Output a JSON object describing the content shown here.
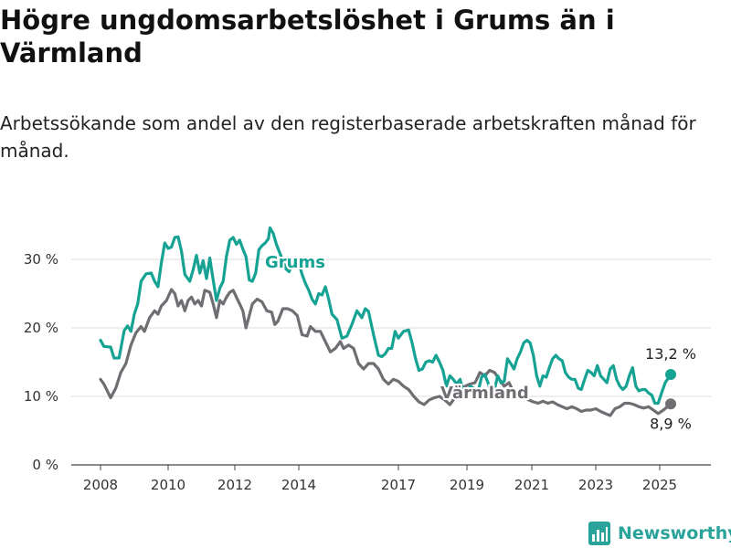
{
  "title": "Högre ungdomsarbetslöshet i Grums än i Värmland",
  "subtitle": "Arbetssökande som andel av den registerbaserade arbetskraften månad för månad.",
  "brand": {
    "name": "Newsworthy",
    "icon": "bar-chart-logo-icon",
    "color": "#2aa39a"
  },
  "chart_data": {
    "type": "line",
    "title": "Högre ungdomsarbetslöshet i Grums än i Värmland",
    "subtitle": "Arbetssökande som andel av den registerbaserade arbetskraften månad för månad.",
    "xlabel": "",
    "ylabel": "",
    "x_ticks": [
      "2008",
      "2010",
      "2012",
      "2014",
      "2017",
      "2019",
      "2021",
      "2023",
      "2025"
    ],
    "y_ticks": [
      0,
      10,
      20,
      30
    ],
    "y_tick_labels": [
      "0 %",
      "10 %",
      "20 %",
      "30 %"
    ],
    "ylim": [
      0,
      36
    ],
    "xlim": [
      2007.6,
      2026.4
    ],
    "grid": true,
    "legend": "inline labels",
    "series": [
      {
        "name": "Grums",
        "color": "#16a394",
        "end_label": "13,2 %",
        "points": [
          [
            2008.0,
            18.2
          ],
          [
            2008.1,
            17.3
          ],
          [
            2008.3,
            17.2
          ],
          [
            2008.4,
            15.6
          ],
          [
            2008.55,
            15.6
          ],
          [
            2008.7,
            19.6
          ],
          [
            2008.8,
            20.3
          ],
          [
            2008.9,
            19.5
          ],
          [
            2009.0,
            22.0
          ],
          [
            2009.1,
            23.5
          ],
          [
            2009.2,
            26.8
          ],
          [
            2009.35,
            27.9
          ],
          [
            2009.5,
            28.0
          ],
          [
            2009.6,
            26.8
          ],
          [
            2009.7,
            26.0
          ],
          [
            2009.8,
            29.5
          ],
          [
            2009.9,
            32.4
          ],
          [
            2010.0,
            31.6
          ],
          [
            2010.1,
            31.8
          ],
          [
            2010.2,
            33.2
          ],
          [
            2010.3,
            33.3
          ],
          [
            2010.4,
            31.2
          ],
          [
            2010.5,
            27.8
          ],
          [
            2010.65,
            26.8
          ],
          [
            2010.75,
            28.5
          ],
          [
            2010.85,
            30.6
          ],
          [
            2010.95,
            28.0
          ],
          [
            2011.05,
            29.8
          ],
          [
            2011.15,
            27.2
          ],
          [
            2011.25,
            30.2
          ],
          [
            2011.35,
            27.0
          ],
          [
            2011.45,
            24.0
          ],
          [
            2011.55,
            25.8
          ],
          [
            2011.65,
            26.8
          ],
          [
            2011.75,
            30.5
          ],
          [
            2011.85,
            32.8
          ],
          [
            2011.95,
            33.2
          ],
          [
            2012.05,
            32.2
          ],
          [
            2012.15,
            32.8
          ],
          [
            2012.25,
            31.5
          ],
          [
            2012.35,
            30.4
          ],
          [
            2012.45,
            27.0
          ],
          [
            2012.55,
            26.8
          ],
          [
            2012.65,
            28.0
          ],
          [
            2012.75,
            31.4
          ],
          [
            2012.85,
            32.0
          ],
          [
            2012.95,
            32.4
          ],
          [
            2013.05,
            33.0
          ],
          [
            2013.1,
            34.6
          ],
          [
            2013.2,
            33.8
          ],
          [
            2013.3,
            32.2
          ],
          [
            2013.4,
            31.0
          ],
          [
            2013.5,
            29.8
          ],
          [
            2013.6,
            28.6
          ],
          [
            2013.7,
            28.2
          ],
          [
            2013.8,
            29.8
          ],
          [
            2013.9,
            30.2
          ],
          [
            2014.0,
            29.5
          ],
          [
            2014.1,
            27.8
          ],
          [
            2014.2,
            26.5
          ],
          [
            2014.3,
            25.5
          ],
          [
            2014.4,
            24.2
          ],
          [
            2014.5,
            23.5
          ],
          [
            2014.6,
            25.0
          ],
          [
            2014.7,
            24.8
          ],
          [
            2014.8,
            26.0
          ],
          [
            2014.9,
            24.2
          ],
          [
            2015.0,
            22.0
          ],
          [
            2015.15,
            21.2
          ],
          [
            2015.3,
            18.5
          ],
          [
            2015.45,
            18.8
          ],
          [
            2015.6,
            20.5
          ],
          [
            2015.75,
            22.5
          ],
          [
            2015.9,
            21.5
          ],
          [
            2016.0,
            22.8
          ],
          [
            2016.1,
            22.4
          ],
          [
            2016.25,
            19.0
          ],
          [
            2016.4,
            16.0
          ],
          [
            2016.5,
            15.8
          ],
          [
            2016.6,
            16.2
          ],
          [
            2016.7,
            17.0
          ],
          [
            2016.8,
            17.0
          ],
          [
            2016.9,
            19.5
          ],
          [
            2017.0,
            18.5
          ],
          [
            2017.15,
            19.5
          ],
          [
            2017.3,
            19.7
          ],
          [
            2017.4,
            17.8
          ],
          [
            2017.5,
            15.5
          ],
          [
            2017.6,
            13.8
          ],
          [
            2017.7,
            14.0
          ],
          [
            2017.8,
            15.0
          ],
          [
            2017.9,
            15.2
          ],
          [
            2018.0,
            15.0
          ],
          [
            2018.1,
            16.0
          ],
          [
            2018.2,
            15.0
          ],
          [
            2018.3,
            13.8
          ],
          [
            2018.4,
            11.5
          ],
          [
            2018.5,
            13.0
          ],
          [
            2018.6,
            12.5
          ],
          [
            2018.7,
            11.8
          ],
          [
            2018.8,
            12.5
          ],
          [
            2018.9,
            10.5
          ],
          [
            2019.0,
            10.0
          ],
          [
            2019.1,
            11.5
          ],
          [
            2019.2,
            11.2
          ],
          [
            2019.3,
            9.8
          ],
          [
            2019.45,
            12.8
          ],
          [
            2019.55,
            13.2
          ],
          [
            2019.65,
            12.0
          ],
          [
            2019.75,
            10.5
          ],
          [
            2019.85,
            11.0
          ],
          [
            2019.95,
            13.0
          ],
          [
            2020.05,
            12.0
          ],
          [
            2020.15,
            12.2
          ],
          [
            2020.25,
            15.5
          ],
          [
            2020.35,
            14.8
          ],
          [
            2020.45,
            14.0
          ],
          [
            2020.55,
            15.5
          ],
          [
            2020.65,
            16.5
          ],
          [
            2020.75,
            17.8
          ],
          [
            2020.85,
            18.2
          ],
          [
            2020.95,
            17.8
          ],
          [
            2021.05,
            16.0
          ],
          [
            2021.15,
            13.0
          ],
          [
            2021.25,
            11.5
          ],
          [
            2021.35,
            13.0
          ],
          [
            2021.45,
            12.8
          ],
          [
            2021.55,
            14.2
          ],
          [
            2021.65,
            15.5
          ],
          [
            2021.75,
            16.0
          ],
          [
            2021.85,
            15.5
          ],
          [
            2021.95,
            15.2
          ],
          [
            2022.05,
            13.5
          ],
          [
            2022.15,
            12.8
          ],
          [
            2022.25,
            12.5
          ],
          [
            2022.35,
            12.5
          ],
          [
            2022.45,
            11.2
          ],
          [
            2022.55,
            11.0
          ],
          [
            2022.65,
            12.5
          ],
          [
            2022.75,
            13.8
          ],
          [
            2022.85,
            13.5
          ],
          [
            2022.95,
            13.0
          ],
          [
            2023.05,
            14.5
          ],
          [
            2023.15,
            13.0
          ],
          [
            2023.25,
            12.5
          ],
          [
            2023.35,
            12.0
          ],
          [
            2023.45,
            14.0
          ],
          [
            2023.55,
            14.5
          ],
          [
            2023.65,
            12.5
          ],
          [
            2023.75,
            11.5
          ],
          [
            2023.85,
            11.0
          ],
          [
            2023.95,
            11.5
          ],
          [
            2024.05,
            13.0
          ],
          [
            2024.15,
            14.2
          ],
          [
            2024.25,
            11.5
          ],
          [
            2024.35,
            10.8
          ],
          [
            2024.45,
            11.0
          ],
          [
            2024.55,
            11.0
          ],
          [
            2024.65,
            10.5
          ],
          [
            2024.75,
            10.2
          ],
          [
            2024.85,
            9.0
          ],
          [
            2024.95,
            9.0
          ],
          [
            2025.05,
            10.5
          ],
          [
            2025.15,
            12.0
          ],
          [
            2025.3,
            13.2
          ]
        ]
      },
      {
        "name": "Värmland",
        "color": "#6e6e73",
        "end_label": "8,9 %",
        "points": [
          [
            2008.0,
            12.5
          ],
          [
            2008.1,
            11.8
          ],
          [
            2008.2,
            10.8
          ],
          [
            2008.3,
            9.8
          ],
          [
            2008.45,
            11.2
          ],
          [
            2008.6,
            13.5
          ],
          [
            2008.75,
            14.8
          ],
          [
            2008.9,
            17.5
          ],
          [
            2009.05,
            19.3
          ],
          [
            2009.2,
            20.2
          ],
          [
            2009.3,
            19.5
          ],
          [
            2009.45,
            21.5
          ],
          [
            2009.6,
            22.5
          ],
          [
            2009.7,
            22.0
          ],
          [
            2009.8,
            23.2
          ],
          [
            2009.95,
            24.0
          ],
          [
            2010.1,
            25.6
          ],
          [
            2010.2,
            25.0
          ],
          [
            2010.3,
            23.2
          ],
          [
            2010.4,
            24.0
          ],
          [
            2010.5,
            22.5
          ],
          [
            2010.6,
            24.0
          ],
          [
            2010.7,
            24.5
          ],
          [
            2010.8,
            23.5
          ],
          [
            2010.9,
            24.0
          ],
          [
            2011.0,
            23.2
          ],
          [
            2011.1,
            25.5
          ],
          [
            2011.25,
            25.2
          ],
          [
            2011.35,
            23.5
          ],
          [
            2011.45,
            21.5
          ],
          [
            2011.55,
            24.0
          ],
          [
            2011.65,
            23.5
          ],
          [
            2011.75,
            24.5
          ],
          [
            2011.85,
            25.2
          ],
          [
            2011.95,
            25.5
          ],
          [
            2012.05,
            24.5
          ],
          [
            2012.15,
            23.5
          ],
          [
            2012.25,
            22.5
          ],
          [
            2012.35,
            20.0
          ],
          [
            2012.45,
            21.8
          ],
          [
            2012.55,
            23.5
          ],
          [
            2012.7,
            24.2
          ],
          [
            2012.85,
            23.8
          ],
          [
            2013.0,
            22.5
          ],
          [
            2013.15,
            22.3
          ],
          [
            2013.25,
            20.5
          ],
          [
            2013.35,
            21.0
          ],
          [
            2013.5,
            22.8
          ],
          [
            2013.65,
            22.8
          ],
          [
            2013.8,
            22.5
          ],
          [
            2013.95,
            21.8
          ],
          [
            2014.1,
            19.0
          ],
          [
            2014.25,
            18.8
          ],
          [
            2014.35,
            20.2
          ],
          [
            2014.5,
            19.5
          ],
          [
            2014.65,
            19.5
          ],
          [
            2014.8,
            18.0
          ],
          [
            2014.95,
            16.5
          ],
          [
            2015.1,
            17.0
          ],
          [
            2015.25,
            18.0
          ],
          [
            2015.35,
            17.0
          ],
          [
            2015.5,
            17.5
          ],
          [
            2015.65,
            17.0
          ],
          [
            2015.8,
            14.8
          ],
          [
            2015.95,
            14.0
          ],
          [
            2016.1,
            14.8
          ],
          [
            2016.25,
            14.8
          ],
          [
            2016.4,
            14.0
          ],
          [
            2016.55,
            12.5
          ],
          [
            2016.7,
            11.8
          ],
          [
            2016.85,
            12.5
          ],
          [
            2017.0,
            12.2
          ],
          [
            2017.15,
            11.5
          ],
          [
            2017.3,
            11.0
          ],
          [
            2017.45,
            10.0
          ],
          [
            2017.6,
            9.2
          ],
          [
            2017.75,
            8.8
          ],
          [
            2017.9,
            9.5
          ],
          [
            2018.05,
            9.8
          ],
          [
            2018.2,
            10.0
          ],
          [
            2018.35,
            9.5
          ],
          [
            2018.5,
            8.8
          ],
          [
            2018.65,
            9.8
          ],
          [
            2018.8,
            11.0
          ],
          [
            2018.95,
            11.5
          ],
          [
            2019.1,
            11.8
          ],
          [
            2019.25,
            12.0
          ],
          [
            2019.4,
            13.5
          ],
          [
            2019.55,
            13.0
          ],
          [
            2019.7,
            13.8
          ],
          [
            2019.85,
            13.5
          ],
          [
            2020.0,
            12.5
          ],
          [
            2020.15,
            11.5
          ],
          [
            2020.3,
            12.0
          ],
          [
            2020.45,
            10.5
          ],
          [
            2020.6,
            10.5
          ],
          [
            2020.75,
            10.0
          ],
          [
            2020.9,
            9.5
          ],
          [
            2021.05,
            9.2
          ],
          [
            2021.2,
            9.0
          ],
          [
            2021.35,
            9.3
          ],
          [
            2021.5,
            9.0
          ],
          [
            2021.65,
            9.2
          ],
          [
            2021.8,
            8.8
          ],
          [
            2021.95,
            8.5
          ],
          [
            2022.1,
            8.2
          ],
          [
            2022.25,
            8.5
          ],
          [
            2022.4,
            8.2
          ],
          [
            2022.55,
            7.8
          ],
          [
            2022.7,
            8.0
          ],
          [
            2022.85,
            8.0
          ],
          [
            2023.0,
            8.2
          ],
          [
            2023.15,
            7.8
          ],
          [
            2023.3,
            7.5
          ],
          [
            2023.45,
            7.2
          ],
          [
            2023.6,
            8.2
          ],
          [
            2023.75,
            8.5
          ],
          [
            2023.9,
            9.0
          ],
          [
            2024.05,
            9.0
          ],
          [
            2024.2,
            8.8
          ],
          [
            2024.35,
            8.5
          ],
          [
            2024.5,
            8.3
          ],
          [
            2024.65,
            8.5
          ],
          [
            2024.8,
            8.0
          ],
          [
            2024.95,
            7.5
          ],
          [
            2025.1,
            8.0
          ],
          [
            2025.3,
            8.9
          ]
        ]
      }
    ]
  }
}
